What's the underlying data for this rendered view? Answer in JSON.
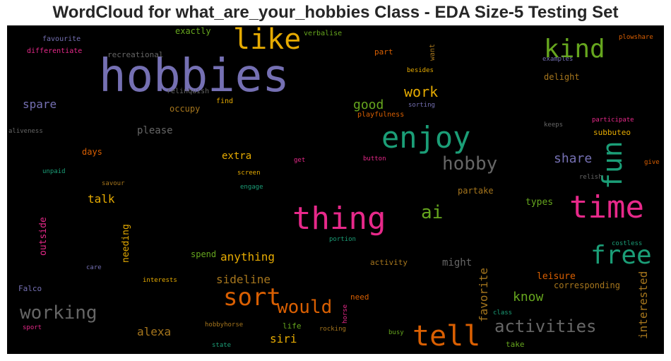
{
  "title": "WordCloud for what_are_your_hobbies Class - EDA Size-5 Testing Set",
  "colors": {
    "background": "#000000",
    "palette": [
      "#7570b3",
      "#d95f02",
      "#1b9e77",
      "#e7298a",
      "#66a61e",
      "#e6ab02",
      "#a6761d",
      "#666666"
    ]
  },
  "words": [
    "hobbies",
    "like",
    "kind",
    "enjoy",
    "time",
    "thing",
    "fun",
    "free",
    "tell",
    "sort",
    "hobby",
    "working",
    "activities",
    "would",
    "ai",
    "work",
    "good",
    "share",
    "know",
    "interested",
    "favorite",
    "siri",
    "alexa",
    "talk",
    "anything",
    "sideline",
    "extra",
    "please",
    "spare",
    "occupy",
    "might",
    "leisure",
    "types",
    "partake",
    "outside",
    "needing",
    "spend",
    "exactly",
    "recreational",
    "favourite",
    "differentiate",
    "relinquish",
    "find",
    "part",
    "want",
    "verbalise",
    "besides",
    "examples",
    "delight",
    "plowshare",
    "playfulness",
    "sorting",
    "aliveness",
    "days",
    "keeps",
    "participate",
    "subbuteo",
    "unpaid",
    "savour",
    "get",
    "button",
    "screen",
    "engage",
    "relish",
    "give",
    "costless",
    "portion",
    "care",
    "activity",
    "corresponding",
    "interests",
    "Falco",
    "need",
    "horse",
    "class",
    "sport",
    "hobbyhorse",
    "life",
    "rocking",
    "busy",
    "take",
    "state"
  ]
}
